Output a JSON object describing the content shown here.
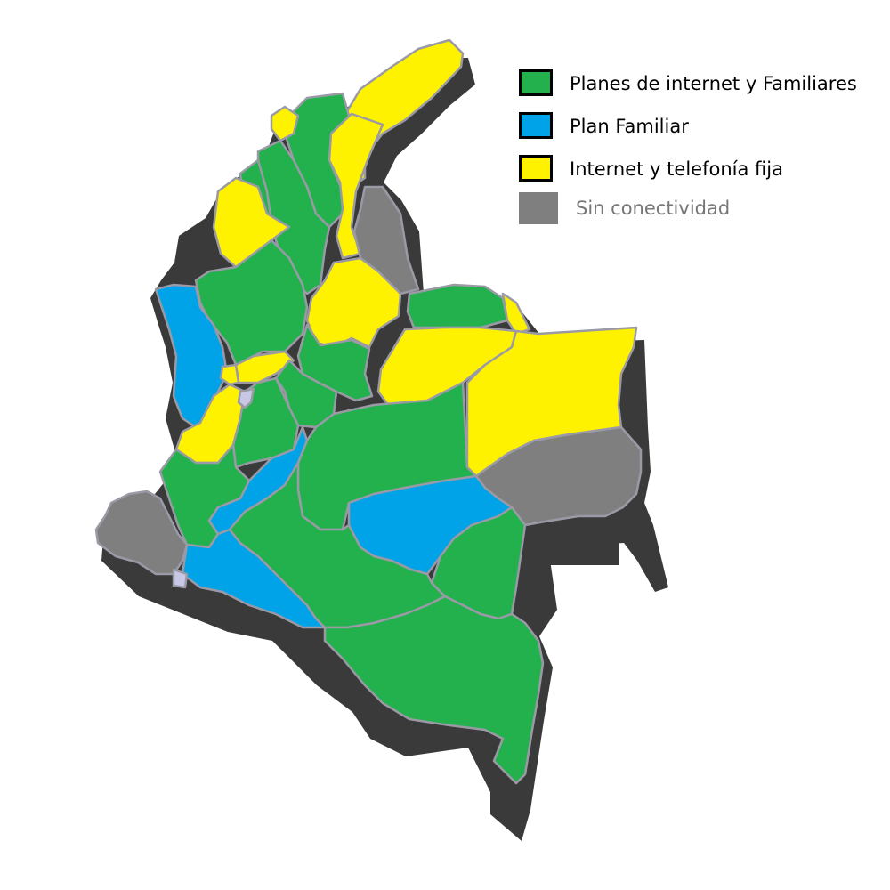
{
  "colors": {
    "green": "#22b14c",
    "blue": "#00a2e8",
    "yellow": "#fff200",
    "gray": "#7f7f7f",
    "lavender": "#c8c8e6",
    "shadow": "#3a3a3a",
    "border": "#9a9aa6"
  },
  "legend": [
    {
      "label": "Planes de internet y Familiares",
      "color": "#22b14c"
    },
    {
      "label": "Plan Familiar",
      "color": "#00a2e8"
    },
    {
      "label": "Internet y telefonía fija",
      "color": "#fff200"
    },
    {
      "label": "Sin conectividad",
      "color": "#7f7f7f"
    }
  ],
  "regions": [
    {
      "name": "guajira",
      "category": "Internet y telefonía fija"
    },
    {
      "name": "magdalena",
      "category": "Planes de internet y Familiares"
    },
    {
      "name": "atlantico",
      "category": "Internet y telefonía fija"
    },
    {
      "name": "cesar",
      "category": "Internet y telefonía fija"
    },
    {
      "name": "bolivar",
      "category": "Planes de internet y Familiares"
    },
    {
      "name": "sucre",
      "category": "Planes de internet y Familiares"
    },
    {
      "name": "cordoba",
      "category": "Internet y telefonía fija"
    },
    {
      "name": "norte-santander",
      "category": "Sin conectividad"
    },
    {
      "name": "antioquia",
      "category": "Planes de internet y Familiares"
    },
    {
      "name": "santander",
      "category": "Internet y telefonía fija"
    },
    {
      "name": "choco",
      "category": "Plan Familiar"
    },
    {
      "name": "arauca",
      "category": "Planes de internet y Familiares"
    },
    {
      "name": "arauca-east",
      "category": "Internet y telefonía fija"
    },
    {
      "name": "boyaca",
      "category": "Planes de internet y Familiares"
    },
    {
      "name": "casanare",
      "category": "Internet y telefonía fija"
    },
    {
      "name": "vichada",
      "category": "Internet y telefonía fija"
    },
    {
      "name": "caldas",
      "category": "Internet y telefonía fija"
    },
    {
      "name": "risaralda",
      "category": "Internet y telefonía fija"
    },
    {
      "name": "cundinamarca",
      "category": "Planes de internet y Familiares"
    },
    {
      "name": "valle",
      "category": "Internet y telefonía fija"
    },
    {
      "name": "tolima",
      "category": "Planes de internet y Familiares"
    },
    {
      "name": "meta",
      "category": "Planes de internet y Familiares"
    },
    {
      "name": "guainia",
      "category": "Sin conectividad"
    },
    {
      "name": "cauca",
      "category": "Planes de internet y Familiares"
    },
    {
      "name": "huila",
      "category": "Plan Familiar"
    },
    {
      "name": "guaviare",
      "category": "Plan Familiar"
    },
    {
      "name": "vaupes",
      "category": "Planes de internet y Familiares"
    },
    {
      "name": "narino",
      "category": "Sin conectividad"
    },
    {
      "name": "putumayo",
      "category": "Plan Familiar"
    },
    {
      "name": "caqueta",
      "category": "Planes de internet y Familiares"
    },
    {
      "name": "amazonas",
      "category": "Planes de internet y Familiares"
    }
  ]
}
